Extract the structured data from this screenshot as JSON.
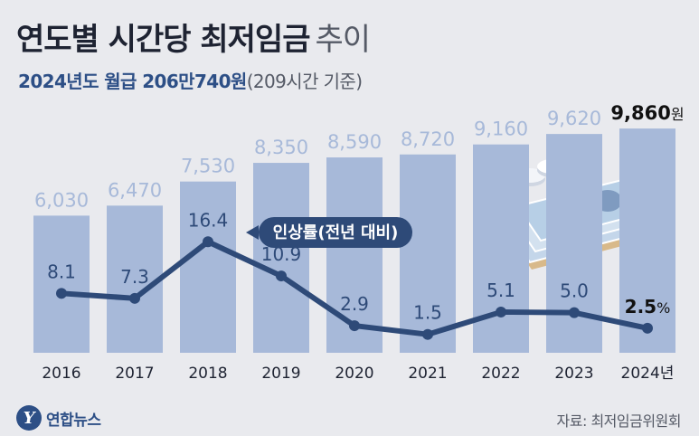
{
  "colors": {
    "bar": "#a7b9d9",
    "line": "#2e4a78",
    "bar_label": "#a7b9d9",
    "line_label": "#2e4a78",
    "highlight_label": "#111111",
    "axis_text": "#1e2332",
    "background": "#e9eaee"
  },
  "title": {
    "main": "연도별 시간당 최저임금",
    "sub": "추이"
  },
  "subtitle": {
    "bold": "2024년도 월급 206만740원",
    "normal": "(209시간 기준)"
  },
  "chart_data": {
    "type": "bar+line",
    "title": "연도별 시간당 최저임금 추이",
    "categories": [
      "2016",
      "2017",
      "2018",
      "2019",
      "2020",
      "2021",
      "2022",
      "2023",
      "2024년"
    ],
    "series": [
      {
        "name": "시간당 최저임금(원)",
        "type": "bar",
        "values": [
          6030,
          6470,
          7530,
          8350,
          8590,
          8720,
          9160,
          9620,
          9860
        ],
        "labels": [
          "6,030",
          "6,470",
          "7,530",
          "8,350",
          "8,590",
          "8,720",
          "9,160",
          "9,620",
          "9,860"
        ],
        "last_unit": "원"
      },
      {
        "name": "인상률(전년 대비)",
        "type": "line",
        "values": [
          8.1,
          7.3,
          16.4,
          10.9,
          2.9,
          1.5,
          5.1,
          5.0,
          2.5
        ],
        "labels": [
          "8.1",
          "7.3",
          "16.4",
          "10.9",
          "2.9",
          "1.5",
          "5.1",
          "5.0",
          "2.5"
        ],
        "last_unit": "%"
      }
    ],
    "annotation": "인상률(전년 대비)",
    "bar_ylim": [
      0,
      10500
    ],
    "line_ylim": [
      0,
      20
    ],
    "grid": false
  },
  "footer": {
    "logo_mark": "Y",
    "logo_text": "연합뉴스",
    "source": "자료: 최저임금위원회"
  }
}
